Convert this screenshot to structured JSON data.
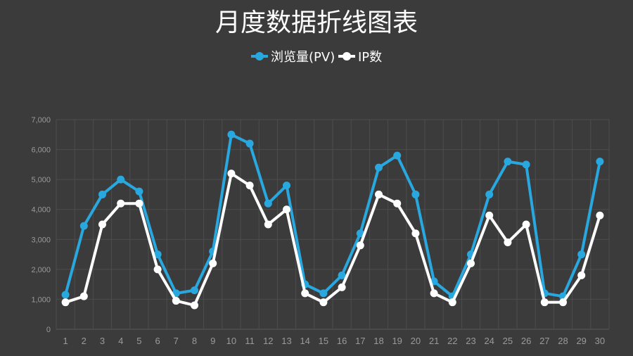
{
  "chart_data": {
    "type": "line",
    "title": "月度数据折线图表",
    "xlabel": "",
    "ylabel": "",
    "x": [
      1,
      2,
      3,
      4,
      5,
      6,
      7,
      8,
      9,
      10,
      11,
      12,
      13,
      14,
      15,
      16,
      17,
      18,
      19,
      20,
      21,
      22,
      23,
      24,
      25,
      26,
      27,
      28,
      29,
      30
    ],
    "ylim": [
      0,
      7000
    ],
    "yticks": [
      0,
      1000,
      2000,
      3000,
      4000,
      5000,
      6000,
      7000
    ],
    "ytick_labels": [
      "0",
      "1,000",
      "2,000",
      "3,000",
      "4,000",
      "5,000",
      "6,000",
      "7,000"
    ],
    "grid": true,
    "legend_position": "top-center",
    "series": [
      {
        "name": "浏览量(PV)",
        "color": "#29a8e0",
        "values": [
          1150,
          3450,
          4500,
          5000,
          4600,
          2500,
          1200,
          1300,
          2600,
          6500,
          6200,
          4200,
          4800,
          1500,
          1200,
          1800,
          3200,
          5400,
          5800,
          4500,
          1600,
          1100,
          2500,
          4500,
          5600,
          5500,
          1200,
          1100,
          2500,
          5600
        ]
      },
      {
        "name": "IP数",
        "color": "#ffffff",
        "values": [
          900,
          1100,
          3500,
          4200,
          4200,
          2000,
          950,
          800,
          2200,
          5200,
          4800,
          3500,
          4000,
          1200,
          900,
          1400,
          2800,
          4500,
          4200,
          3200,
          1200,
          900,
          2200,
          3800,
          2900,
          3500,
          900,
          900,
          1800,
          3800
        ]
      }
    ]
  }
}
